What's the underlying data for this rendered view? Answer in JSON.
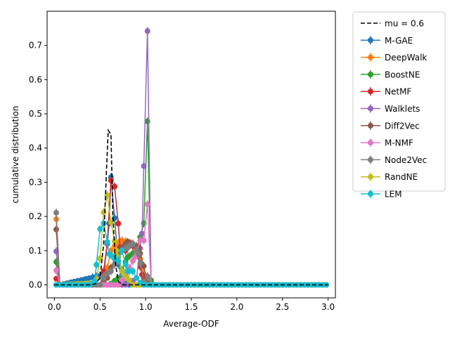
{
  "chart_data": {
    "type": "line",
    "title": "",
    "xlabel": "Average-ODF",
    "ylabel": "cumulative distribution",
    "xlim": [
      -0.08,
      3.08
    ],
    "ylim": [
      -0.038,
      0.8
    ],
    "xticks": [
      0.0,
      0.5,
      1.0,
      1.5,
      2.0,
      2.5,
      3.0
    ],
    "xtick_labels": [
      "0.0",
      "0.5",
      "1.0",
      "1.5",
      "2.0",
      "2.5",
      "3.0"
    ],
    "yticks": [
      0.0,
      0.1,
      0.2,
      0.3,
      0.4,
      0.5,
      0.6,
      0.7
    ],
    "ytick_labels": [
      "0.0",
      "0.1",
      "0.2",
      "0.3",
      "0.4",
      "0.5",
      "0.6",
      "0.7"
    ],
    "grid": false,
    "legend_position": "outside-right",
    "reference_line": {
      "name": "mu = 0.6",
      "color": "#000000",
      "style": "dashed",
      "points": [
        [
          0.0,
          0.0
        ],
        [
          0.4,
          0.0
        ],
        [
          0.45,
          0.003
        ],
        [
          0.5,
          0.02
        ],
        [
          0.54,
          0.12
        ],
        [
          0.57,
          0.33
        ],
        [
          0.59,
          0.452
        ],
        [
          0.62,
          0.44
        ],
        [
          0.64,
          0.21
        ],
        [
          0.67,
          0.06
        ],
        [
          0.7,
          0.01
        ],
        [
          0.75,
          0.0
        ],
        [
          3.0,
          0.0
        ]
      ]
    },
    "series": [
      {
        "name": "M-GAE",
        "color": "#1f77b4",
        "points": [
          [
            0.02,
            0.0
          ],
          [
            0.06,
            0.0
          ],
          [
            0.55,
            0.03
          ],
          [
            0.6,
            0.18
          ],
          [
            0.62,
            0.315
          ],
          [
            0.66,
            0.195
          ],
          [
            0.7,
            0.06
          ],
          [
            0.75,
            0.01
          ],
          [
            0.8,
            0.0
          ],
          [
            3.0,
            0.0
          ]
        ]
      },
      {
        "name": "DeepWalk",
        "color": "#ff7f0e",
        "points": [
          [
            0.02,
            0.192
          ],
          [
            0.06,
            0.0
          ],
          [
            0.5,
            0.0
          ],
          [
            0.58,
            0.05
          ],
          [
            0.62,
            0.1
          ],
          [
            0.68,
            0.12
          ],
          [
            0.74,
            0.13
          ],
          [
            0.8,
            0.125
          ],
          [
            0.86,
            0.12
          ],
          [
            0.92,
            0.1
          ],
          [
            0.98,
            0.03
          ],
          [
            1.02,
            0.005
          ],
          [
            1.06,
            0.0
          ],
          [
            3.0,
            0.0
          ]
        ]
      },
      {
        "name": "BoostNE",
        "color": "#2ca02c",
        "points": [
          [
            0.02,
            0.067
          ],
          [
            0.06,
            0.0
          ],
          [
            0.6,
            0.0
          ],
          [
            0.7,
            0.02
          ],
          [
            0.8,
            0.08
          ],
          [
            0.9,
            0.1
          ],
          [
            0.98,
            0.18
          ],
          [
            1.02,
            0.478
          ],
          [
            1.05,
            0.02
          ],
          [
            1.08,
            0.0
          ],
          [
            3.0,
            0.0
          ]
        ]
      },
      {
        "name": "NetMF",
        "color": "#d62728",
        "points": [
          [
            0.02,
            0.018
          ],
          [
            0.06,
            0.0
          ],
          [
            0.5,
            0.0
          ],
          [
            0.54,
            0.04
          ],
          [
            0.58,
            0.125
          ],
          [
            0.62,
            0.305
          ],
          [
            0.67,
            0.283
          ],
          [
            0.72,
            0.11
          ],
          [
            0.78,
            0.1
          ],
          [
            0.84,
            0.12
          ],
          [
            0.9,
            0.1
          ],
          [
            0.96,
            0.03
          ],
          [
            1.02,
            0.0
          ],
          [
            3.0,
            0.0
          ]
        ]
      },
      {
        "name": "Walklets",
        "color": "#9467bd",
        "points": [
          [
            0.02,
            0.098
          ],
          [
            0.06,
            0.0
          ],
          [
            0.8,
            0.0
          ],
          [
            0.9,
            0.02
          ],
          [
            0.96,
            0.15
          ],
          [
            1.02,
            0.742
          ],
          [
            1.06,
            0.0
          ],
          [
            3.0,
            0.0
          ]
        ]
      },
      {
        "name": "Diff2Vec",
        "color": "#8c564b",
        "points": [
          [
            0.02,
            0.162
          ],
          [
            0.06,
            0.0
          ],
          [
            0.5,
            0.0
          ],
          [
            0.58,
            0.02
          ],
          [
            0.62,
            0.05
          ],
          [
            0.68,
            0.09
          ],
          [
            0.74,
            0.11
          ],
          [
            0.8,
            0.125
          ],
          [
            0.86,
            0.12
          ],
          [
            0.92,
            0.11
          ],
          [
            0.98,
            0.055
          ],
          [
            1.02,
            0.005
          ],
          [
            1.06,
            0.0
          ],
          [
            3.0,
            0.0
          ]
        ]
      },
      {
        "name": "M-NMF",
        "color": "#e377c2",
        "points": [
          [
            0.02,
            0.042
          ],
          [
            0.06,
            0.0
          ],
          [
            0.7,
            0.0
          ],
          [
            0.76,
            0.02
          ],
          [
            0.82,
            0.05
          ],
          [
            0.88,
            0.08
          ],
          [
            0.94,
            0.13
          ],
          [
            0.98,
            0.13
          ],
          [
            1.03,
            0.262
          ],
          [
            1.06,
            0.0
          ],
          [
            3.0,
            0.0
          ]
        ]
      },
      {
        "name": "Node2Vec",
        "color": "#7f7f7f",
        "points": [
          [
            0.02,
            0.211
          ],
          [
            0.06,
            0.0
          ],
          [
            0.5,
            0.0
          ],
          [
            0.56,
            0.03
          ],
          [
            0.62,
            0.04
          ],
          [
            0.68,
            0.07
          ],
          [
            0.74,
            0.1
          ],
          [
            0.8,
            0.11
          ],
          [
            0.86,
            0.12
          ],
          [
            0.92,
            0.09
          ],
          [
            0.98,
            0.01
          ],
          [
            1.02,
            0.025
          ],
          [
            1.06,
            0.0
          ],
          [
            3.0,
            0.0
          ]
        ]
      },
      {
        "name": "RandNE",
        "color": "#bcbd22",
        "points": [
          [
            0.02,
            0.0
          ],
          [
            0.06,
            0.0
          ],
          [
            0.42,
            0.005
          ],
          [
            0.47,
            0.02
          ],
          [
            0.51,
            0.096
          ],
          [
            0.54,
            0.212
          ],
          [
            0.58,
            0.262
          ],
          [
            0.62,
            0.183
          ],
          [
            0.68,
            0.1
          ],
          [
            0.74,
            0.04
          ],
          [
            0.8,
            0.02
          ],
          [
            0.86,
            0.0
          ],
          [
            3.0,
            0.0
          ]
        ]
      },
      {
        "name": "LEM",
        "color": "#17becf",
        "points": [
          [
            0.02,
            0.0
          ],
          [
            0.06,
            0.0
          ],
          [
            0.4,
            0.0
          ],
          [
            0.44,
            0.01
          ],
          [
            0.47,
            0.083
          ],
          [
            0.51,
            0.19
          ],
          [
            0.55,
            0.177
          ],
          [
            0.6,
            0.09
          ],
          [
            0.65,
            0.08
          ],
          [
            0.7,
            0.07
          ],
          [
            0.74,
            0.1
          ],
          [
            0.8,
            0.04
          ],
          [
            0.86,
            0.04
          ],
          [
            0.9,
            0.02
          ],
          [
            0.96,
            0.0
          ],
          [
            3.0,
            0.0
          ]
        ]
      }
    ]
  }
}
